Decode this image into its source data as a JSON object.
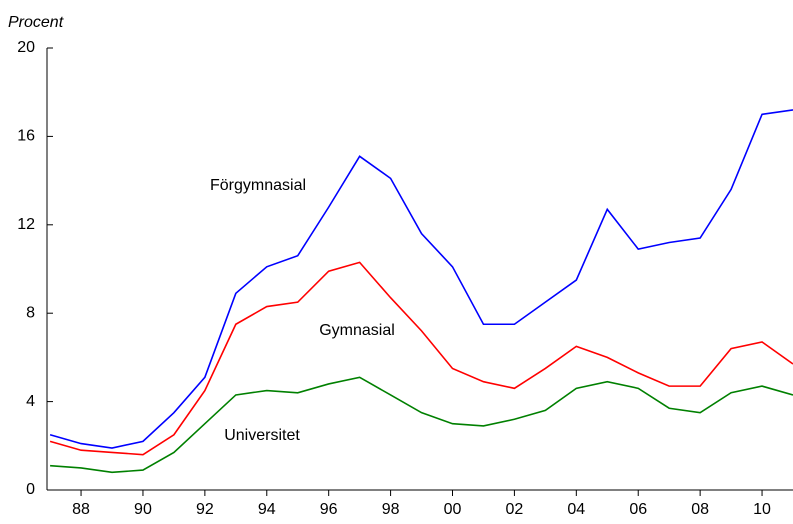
{
  "chart_data": {
    "type": "line",
    "ylabel": "Procent",
    "x": [
      1987,
      1988,
      1989,
      1990,
      1991,
      1992,
      1993,
      1994,
      1995,
      1996,
      1997,
      1998,
      1999,
      2000,
      2001,
      2002,
      2003,
      2004,
      2005,
      2006,
      2007,
      2008,
      2009,
      2010,
      2011
    ],
    "series": [
      {
        "name": "Förgymnasial",
        "color": "#0000ff",
        "values": [
          2.5,
          2.1,
          1.9,
          2.2,
          3.5,
          5.1,
          8.9,
          10.1,
          10.6,
          12.8,
          15.1,
          14.1,
          11.6,
          10.1,
          7.5,
          7.5,
          8.5,
          9.5,
          12.7,
          10.9,
          11.2,
          11.4,
          13.6,
          17.0,
          17.2
        ]
      },
      {
        "name": "Gymnasial",
        "color": "#ff0000",
        "values": [
          2.2,
          1.8,
          1.7,
          1.6,
          2.5,
          4.5,
          7.5,
          8.3,
          8.5,
          9.9,
          10.3,
          8.7,
          7.2,
          5.5,
          4.9,
          4.6,
          5.5,
          6.5,
          6.0,
          5.3,
          4.7,
          4.7,
          6.4,
          6.7,
          5.7
        ]
      },
      {
        "name": "Universitet",
        "color": "#008000",
        "values": [
          1.1,
          1.0,
          0.8,
          0.9,
          1.7,
          3.0,
          4.3,
          4.5,
          4.4,
          4.8,
          5.1,
          4.3,
          3.5,
          3.0,
          2.9,
          3.2,
          3.6,
          4.6,
          4.9,
          4.6,
          3.7,
          3.5,
          4.4,
          4.7,
          4.3
        ]
      }
    ],
    "xlim": [
      1986.9,
      2011
    ],
    "xticks": [
      {
        "value": 1988,
        "label": "88"
      },
      {
        "value": 1990,
        "label": "90"
      },
      {
        "value": 1992,
        "label": "92"
      },
      {
        "value": 1994,
        "label": "94"
      },
      {
        "value": 1996,
        "label": "96"
      },
      {
        "value": 1998,
        "label": "98"
      },
      {
        "value": 2000,
        "label": "00"
      },
      {
        "value": 2002,
        "label": "02"
      },
      {
        "value": 2004,
        "label": "04"
      },
      {
        "value": 2006,
        "label": "06"
      },
      {
        "value": 2008,
        "label": "08"
      },
      {
        "value": 2010,
        "label": "10"
      }
    ],
    "ylim": [
      0,
      20
    ],
    "yticks": [
      0,
      4,
      8,
      12,
      16,
      20
    ],
    "grid": false
  }
}
